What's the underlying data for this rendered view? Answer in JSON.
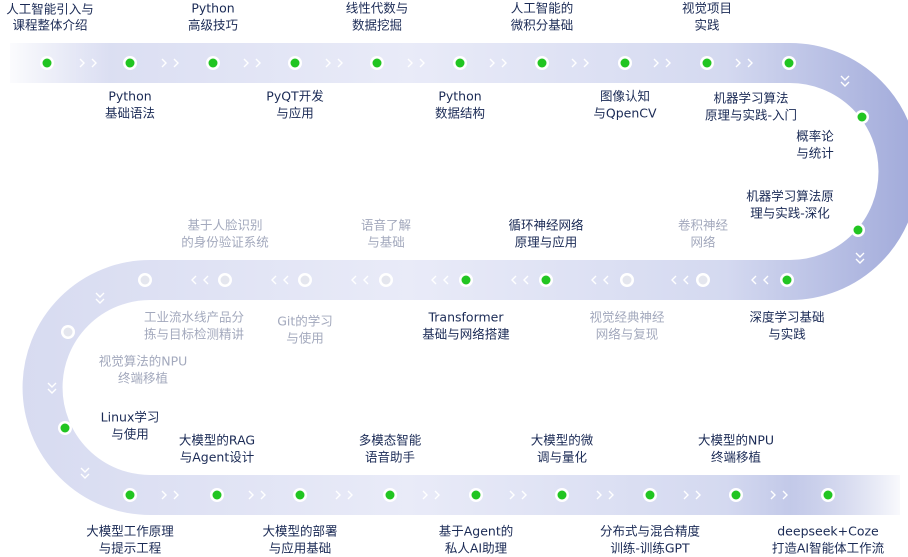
{
  "nodes": [
    {
      "lines": [
        "人工智能引入与",
        "课程整体介绍"
      ],
      "active": true
    },
    {
      "lines": [
        "Python",
        "基础语法"
      ],
      "active": true
    },
    {
      "lines": [
        "Python",
        "高级技巧"
      ],
      "active": true
    },
    {
      "lines": [
        "PyQT开发",
        "与应用"
      ],
      "active": true
    },
    {
      "lines": [
        "线性代数与",
        "数据挖掘"
      ],
      "active": true
    },
    {
      "lines": [
        "Python",
        "数据结构"
      ],
      "active": true
    },
    {
      "lines": [
        "人工智能的",
        "微积分基础"
      ],
      "active": true
    },
    {
      "lines": [
        "图像认知",
        "与QpenCV"
      ],
      "active": true
    },
    {
      "lines": [
        "视觉项目",
        "实践"
      ],
      "active": true
    },
    {
      "lines": [
        "机器学习算法",
        "原理与实践-入门"
      ],
      "active": true
    },
    {
      "lines": [
        "概率论",
        "与统计"
      ],
      "active": true
    },
    {
      "lines": [
        "机器学习算法原",
        "理与实践-深化"
      ],
      "active": true
    },
    {
      "lines": [
        "深度学习基础",
        "与实践"
      ],
      "active": true
    },
    {
      "lines": [
        "卷积神经",
        "网络"
      ],
      "active": false
    },
    {
      "lines": [
        "视觉经典神经",
        "网络与复现"
      ],
      "active": false
    },
    {
      "lines": [
        "循环神经网络",
        "原理与应用"
      ],
      "active": true
    },
    {
      "lines": [
        "Transformer",
        "基础与网络搭建"
      ],
      "active": true
    },
    {
      "lines": [
        "语音了解",
        "与基础"
      ],
      "active": false
    },
    {
      "lines": [
        "Git的学习",
        "与使用"
      ],
      "active": false
    },
    {
      "lines": [
        "基于人脸识别",
        "的身份验证系统"
      ],
      "active": false
    },
    {
      "lines": [
        "工业流水线产品分",
        "拣与目标检测精讲"
      ],
      "active": false
    },
    {
      "lines": [
        "视觉算法的NPU",
        "终端移植"
      ],
      "active": false
    },
    {
      "lines": [
        "Linux学习",
        "与使用"
      ],
      "active": true
    },
    {
      "lines": [
        "大模型工作原理",
        "与提示工程"
      ],
      "active": true
    },
    {
      "lines": [
        "大模型的RAG",
        "与Agent设计"
      ],
      "active": true
    },
    {
      "lines": [
        "大模型的部署",
        "与应用基础"
      ],
      "active": true
    },
    {
      "lines": [
        "多模态智能",
        "语音助手"
      ],
      "active": true
    },
    {
      "lines": [
        "基于Agent的",
        "私人AI助理"
      ],
      "active": true
    },
    {
      "lines": [
        "大模型的微",
        "调与量化"
      ],
      "active": true
    },
    {
      "lines": [
        "分布式与混合精度",
        "训练-训练GPT"
      ],
      "active": true
    },
    {
      "lines": [
        "大模型的NPU",
        "终端移植"
      ],
      "active": true
    },
    {
      "lines": [
        "deepseek+Coze",
        "打造AI智能体工作流"
      ],
      "active": true
    }
  ]
}
